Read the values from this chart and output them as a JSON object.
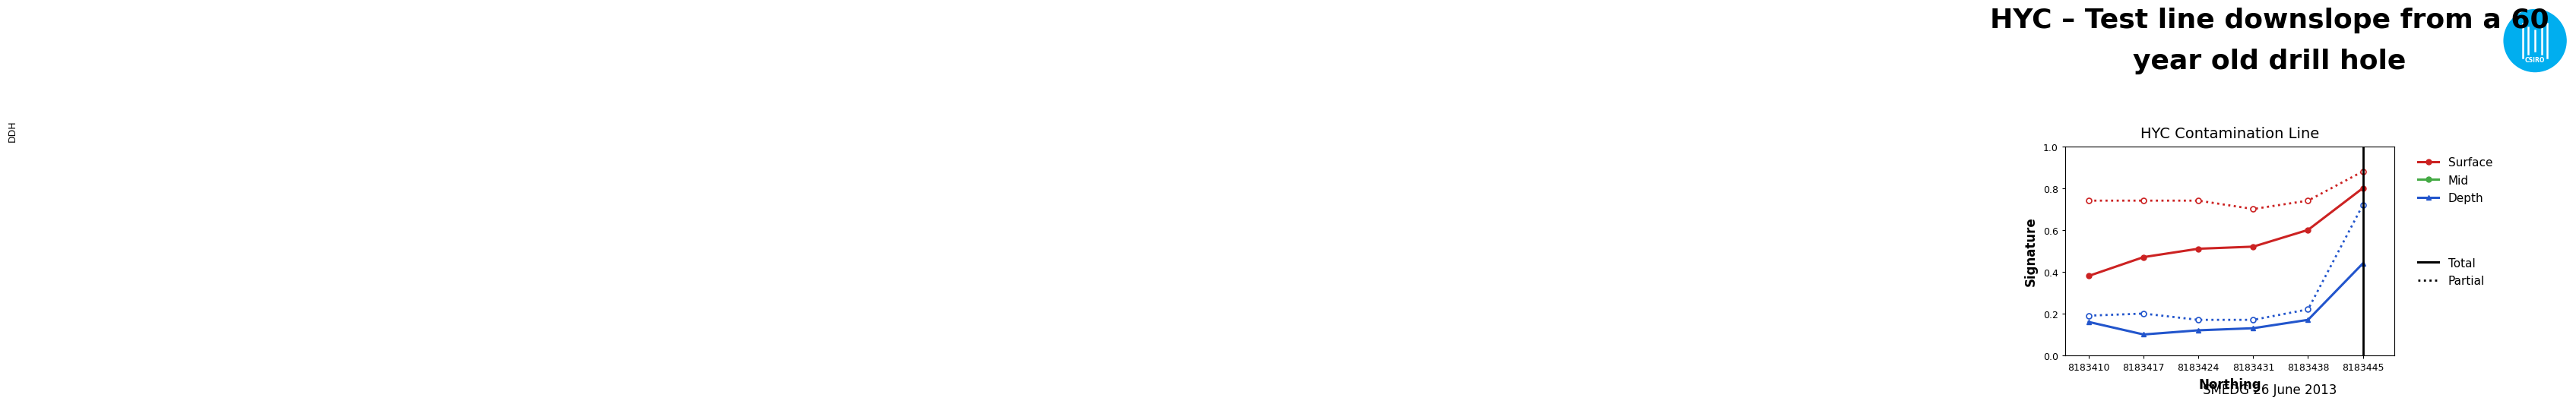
{
  "title_line1": "HYC – Test line downslope from a 60",
  "title_line2": "year old drill hole",
  "chart_title": "HYC Contamination Line",
  "xlabel": "Northing",
  "ylabel": "Signature",
  "x_values": [
    8183410,
    8183417,
    8183424,
    8183431,
    8183438,
    8183445
  ],
  "x_ticks": [
    8183410,
    8183417,
    8183424,
    8183431,
    8183438,
    8183445
  ],
  "ylim": [
    0.0,
    1.0
  ],
  "yticks": [
    0.0,
    0.2,
    0.4,
    0.6,
    0.8,
    1.0
  ],
  "surface_total": [
    0.38,
    0.47,
    0.51,
    0.52,
    0.6,
    0.8
  ],
  "surface_partial": [
    0.74,
    0.74,
    0.74,
    0.7,
    0.74,
    0.88
  ],
  "depth_total": [
    0.16,
    0.1,
    0.12,
    0.13,
    0.17,
    0.44
  ],
  "depth_partial": [
    0.19,
    0.2,
    0.17,
    0.17,
    0.22,
    0.72
  ],
  "surface_color": "#CC2222",
  "depth_color": "#2255CC",
  "mid_color": "#44AA44",
  "ddh_color": "#8878BB",
  "background_color": "#ffffff",
  "footer_text": "SMEDG 26 June 2013",
  "csiro_color": "#00AEEF",
  "title_fontsize": 26,
  "chart_title_fontsize": 14,
  "xlabel_fontsize": 12,
  "ylabel_fontsize": 12,
  "tick_fontsize": 9,
  "legend_fontsize": 11,
  "footer_fontsize": 12
}
